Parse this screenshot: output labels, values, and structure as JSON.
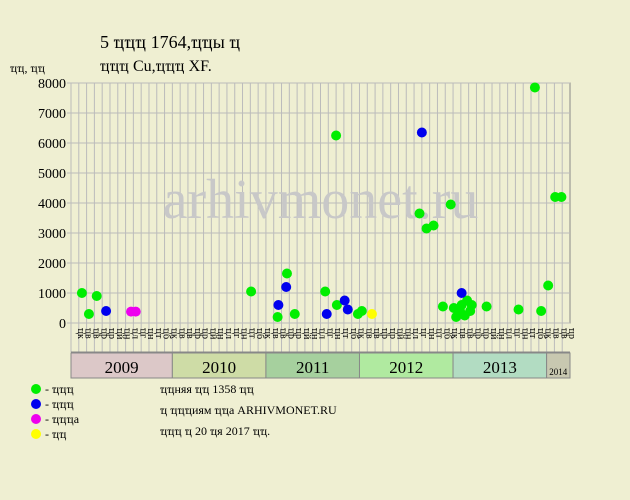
{
  "chart_data": {
    "type": "scatter",
    "title": [
      "5 ҵҵҵ 1764,ҵҵы ҵ",
      "ҵҵҵ Cu,ҵҵҵ XF."
    ],
    "y_label": "ҵҵ, ҵҵ",
    "watermark": "arhivmonet.ru",
    "xlim": [
      0,
      64
    ],
    "ylim": [
      0,
      8000
    ],
    "yticks": [
      0,
      1000,
      2000,
      3000,
      4000,
      5000,
      6000,
      7000,
      8000
    ],
    "grid": true,
    "month_labels": [
      "ҵк",
      "ҵв",
      "ҵв",
      "ҵр",
      "ҵр",
      "ҵй",
      "ҵн",
      "ҵл",
      "ҵг",
      "ҵн",
      "ҵт",
      "ҵб",
      "ҵк",
      "ҵв",
      "ҵв",
      "ҵр",
      "ҵр",
      "ҵй",
      "ҵн",
      "ҵл",
      "ҵг",
      "ҵн",
      "ҵт",
      "ҵб",
      "ҵк",
      "ҵв",
      "ҵв",
      "ҵр",
      "ҵр",
      "ҵй",
      "ҵн",
      "ҵл",
      "ҵг",
      "ҵн",
      "ҵт",
      "ҵб",
      "ҵк",
      "ҵв",
      "ҵв",
      "ҵр",
      "ҵр",
      "ҵй",
      "ҵн",
      "ҵл",
      "ҵг",
      "ҵн",
      "ҵт",
      "ҵб",
      "ҵк",
      "ҵв",
      "ҵв",
      "ҵр",
      "ҵр",
      "ҵй",
      "ҵн",
      "ҵл",
      "ҵг",
      "ҵн",
      "ҵт",
      "ҵб",
      "ҵк",
      "ҵв",
      "ҵв",
      "ҵр"
    ],
    "year_bands": [
      {
        "label": "2009",
        "from": 0,
        "to": 13,
        "color": "#dcc8c8"
      },
      {
        "label": "2010",
        "from": 13,
        "to": 25,
        "color": "#cedca6"
      },
      {
        "label": "2011",
        "from": 25,
        "to": 37,
        "color": "#a6d09e"
      },
      {
        "label": "2012",
        "from": 37,
        "to": 49,
        "color": "#b0eaa0"
      },
      {
        "label": "2013",
        "from": 49,
        "to": 61,
        "color": "#b2dcc2"
      },
      {
        "label": "2014",
        "from": 61,
        "to": 64,
        "color": "#c8c8b0"
      }
    ],
    "series": [
      {
        "name": "- ҵҵҵ",
        "color": "#00ee00",
        "x": [
          1.4,
          2.3,
          3.3,
          23.1,
          26.5,
          27.7,
          28.7,
          32.6,
          34,
          34.1,
          36.8,
          37.3,
          44.7,
          45.6,
          46.5,
          47.7,
          48.7,
          49.1,
          49.4,
          49.9,
          50.1,
          50.5,
          50.8,
          51.2,
          51.4,
          53.3,
          57.4,
          59.5,
          60.3,
          61.2,
          62.1,
          62.9
        ],
        "values": [
          1000,
          300,
          900,
          1050,
          200,
          1650,
          300,
          1050,
          6250,
          600,
          300,
          400,
          3650,
          3150,
          3250,
          550,
          3950,
          500,
          200,
          400,
          600,
          250,
          750,
          400,
          600,
          550,
          450,
          7850,
          400,
          1250,
          4200,
          4200
        ]
      },
      {
        "name": "- ҵҵҵ",
        "color": "#0000ee",
        "x": [
          4.5,
          26.6,
          27.6,
          32.8,
          35.1,
          35.5,
          45,
          50.1
        ],
        "values": [
          400,
          600,
          1200,
          300,
          750,
          450,
          6350,
          1000
        ]
      },
      {
        "name": "- ҵҵҵа",
        "color": "#ee00ee",
        "x": [
          7.7,
          8.3
        ],
        "values": [
          380,
          380
        ]
      },
      {
        "name": "- ҵҵ",
        "color": "#ffff00",
        "x": [
          38.6
        ],
        "values": [
          300
        ]
      }
    ],
    "notes": [
      "ҵҵняя ҵҵ 1358 ҵҵ",
      "ҵ ҵҵҵиям ҵҵа ARHIVMONET.RU",
      "ҵҵҵ ҵ 20 ҵя 2017 ҵҵ."
    ]
  }
}
